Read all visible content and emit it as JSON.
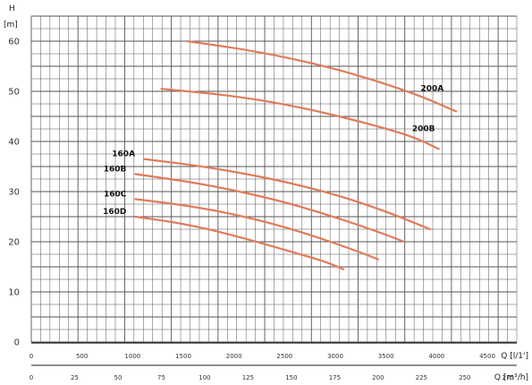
{
  "chart_data": {
    "type": "line",
    "title": "",
    "ylabel_symbol": "H",
    "ylabel_unit": "[m]",
    "xlabel_top": "Q [l/1']",
    "xlabel_bottom": "Q [m³/h]",
    "ylim": [
      0,
      65
    ],
    "y_ticks": [
      0,
      10,
      20,
      30,
      40,
      50,
      60
    ],
    "x_top_ticks": [
      "0",
      "500",
      "1000",
      "1500",
      "2000",
      "2500",
      "3000",
      "3500",
      "4000",
      "4500"
    ],
    "x_bottom_ticks": [
      "0",
      "25",
      "50",
      "75",
      "100",
      "125",
      "150",
      "175",
      "200",
      "225",
      "250",
      "275"
    ],
    "xlim": [
      0,
      280
    ],
    "grid": true,
    "line_color": "#e07b5a",
    "series": [
      {
        "name": "200A",
        "x": [
          90,
          130,
          170,
          200,
          225,
          245
        ],
        "y": [
          60,
          58,
          55,
          52,
          49,
          46
        ]
      },
      {
        "name": "200B",
        "x": [
          75,
          120,
          160,
          195,
          220,
          235
        ],
        "y": [
          50.5,
          49,
          46.5,
          43.5,
          41,
          38.5
        ]
      },
      {
        "name": "160A",
        "x": [
          65,
          100,
          140,
          175,
          205,
          230
        ],
        "y": [
          36.5,
          35,
          32.5,
          29.5,
          26,
          22.5
        ]
      },
      {
        "name": "160B",
        "x": [
          60,
          100,
          140,
          170,
          200,
          215
        ],
        "y": [
          33.5,
          31.5,
          28.5,
          25.5,
          22,
          20
        ]
      },
      {
        "name": "160C",
        "x": [
          60,
          95,
          130,
          160,
          185,
          200
        ],
        "y": [
          28.5,
          27,
          24.5,
          21.5,
          18.5,
          16.5
        ]
      },
      {
        "name": "160D",
        "x": [
          60,
          90,
          120,
          150,
          170,
          180
        ],
        "y": [
          25,
          23.5,
          21,
          18,
          16,
          14.5
        ]
      }
    ]
  }
}
